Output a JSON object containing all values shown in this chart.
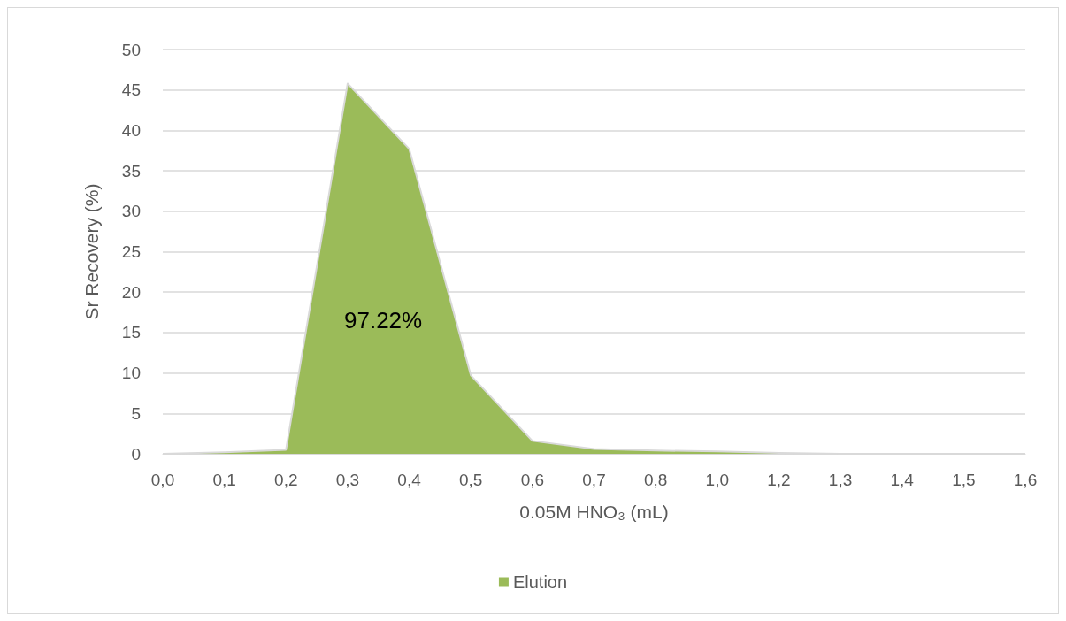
{
  "chart_data": {
    "type": "area",
    "categories": [
      "0,0",
      "0,1",
      "0,2",
      "0,3",
      "0,4",
      "0,5",
      "0,6",
      "0,7",
      "0,8",
      "1,0",
      "1,2",
      "1,3",
      "1,4",
      "1,5",
      "1,6"
    ],
    "series": [
      {
        "name": "Elution",
        "color": "#9bbb59",
        "values": [
          0,
          0.2,
          0.5,
          45.8,
          37.7,
          9.7,
          1.6,
          0.6,
          0.4,
          0.3,
          0.1,
          0,
          0,
          0,
          0
        ]
      }
    ],
    "xlabel": "0.05M HNO₃ (mL)",
    "ylabel": "Sr Recovery (%)",
    "ylim": [
      0,
      50
    ],
    "yticks": [
      0,
      5,
      10,
      15,
      20,
      25,
      30,
      35,
      40,
      45,
      50
    ],
    "annotations": [
      "97.22%"
    ],
    "grid": "y",
    "legend": "bottom",
    "marker": "none"
  }
}
